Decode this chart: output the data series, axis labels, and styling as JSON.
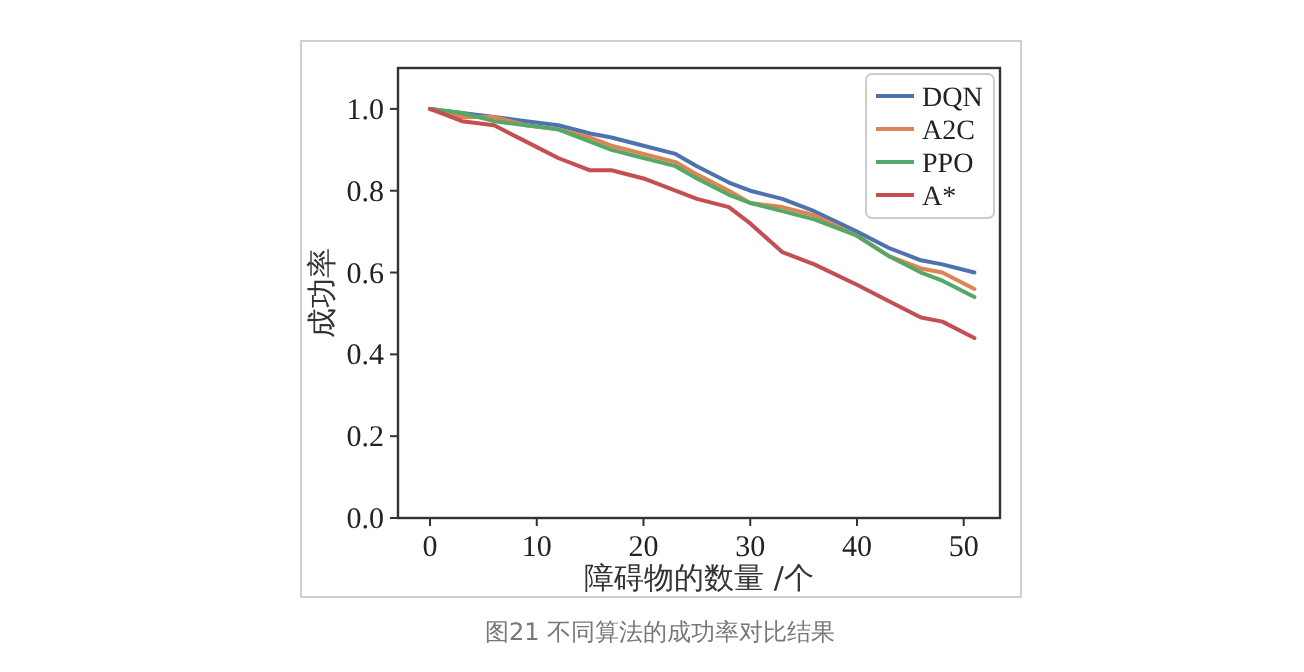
{
  "chart_data": {
    "type": "line",
    "xlabel": "障碍物的数量 /个",
    "ylabel": "成功率",
    "x": [
      0,
      3,
      6,
      9,
      12,
      15,
      17,
      20,
      23,
      25,
      28,
      30,
      33,
      36,
      40,
      43,
      46,
      48,
      51
    ],
    "series": [
      {
        "name": "DQN",
        "color": "#4c72b0",
        "values": [
          1.0,
          0.99,
          0.98,
          0.97,
          0.96,
          0.94,
          0.93,
          0.91,
          0.89,
          0.86,
          0.82,
          0.8,
          0.78,
          0.75,
          0.7,
          0.66,
          0.63,
          0.62,
          0.6
        ]
      },
      {
        "name": "A2C",
        "color": "#dd8452",
        "values": [
          1.0,
          0.98,
          0.98,
          0.96,
          0.95,
          0.93,
          0.91,
          0.89,
          0.87,
          0.84,
          0.8,
          0.77,
          0.76,
          0.74,
          0.69,
          0.64,
          0.61,
          0.6,
          0.56
        ]
      },
      {
        "name": "PPO",
        "color": "#55a868",
        "values": [
          1.0,
          0.99,
          0.97,
          0.96,
          0.95,
          0.92,
          0.9,
          0.88,
          0.86,
          0.83,
          0.79,
          0.77,
          0.75,
          0.73,
          0.69,
          0.64,
          0.6,
          0.58,
          0.54
        ]
      },
      {
        "name": "A*",
        "color": "#c44e52",
        "values": [
          1.0,
          0.97,
          0.96,
          0.92,
          0.88,
          0.85,
          0.85,
          0.83,
          0.8,
          0.78,
          0.76,
          0.72,
          0.65,
          0.62,
          0.57,
          0.53,
          0.49,
          0.48,
          0.44
        ]
      }
    ],
    "xlim": [
      -3,
      53.4
    ],
    "ylim": [
      0,
      1.1
    ],
    "xticks": [
      0,
      10,
      20,
      30,
      40,
      50
    ],
    "yticks": [
      {
        "value": 0,
        "label": "0.0"
      },
      {
        "value": 0.2,
        "label": "0.2"
      },
      {
        "value": 0.4,
        "label": "0.4"
      },
      {
        "value": 0.6,
        "label": "0.6"
      },
      {
        "value": 0.8,
        "label": "0.8"
      },
      {
        "value": 1,
        "label": "1.0"
      }
    ],
    "legend": "top right",
    "annotations": [
      "图21 不同算法的成功率对比结果"
    ]
  }
}
